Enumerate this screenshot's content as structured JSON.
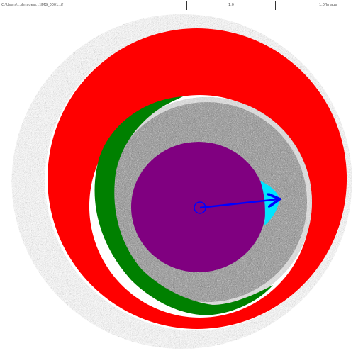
{
  "overlay_text": {
    "top_left": "C:\\Users\\...\\Images\\...\\IMG_0001.tif",
    "top_center": "1.0",
    "top_right": "1.0/Image"
  },
  "colors": {
    "background": "#ffffff",
    "outer_ring": "#ff0000",
    "crescent": "#008000",
    "inner_disc": "#800080",
    "highlight_sliver": "#00e5ff",
    "radius_arrow": "#0000ff",
    "texture": "#8a8a8a"
  },
  "annotations": [
    {
      "name": "outer-ring",
      "shape": "annulus",
      "color_key": "outer_ring"
    },
    {
      "name": "green-crescent",
      "shape": "crescent",
      "color_key": "crescent"
    },
    {
      "name": "purple-disc",
      "shape": "disc",
      "color_key": "inner_disc"
    },
    {
      "name": "cyan-sliver",
      "shape": "sliver",
      "color_key": "highlight_sliver"
    },
    {
      "name": "radius-arrow",
      "shape": "arrow",
      "color_key": "radius_arrow"
    }
  ]
}
